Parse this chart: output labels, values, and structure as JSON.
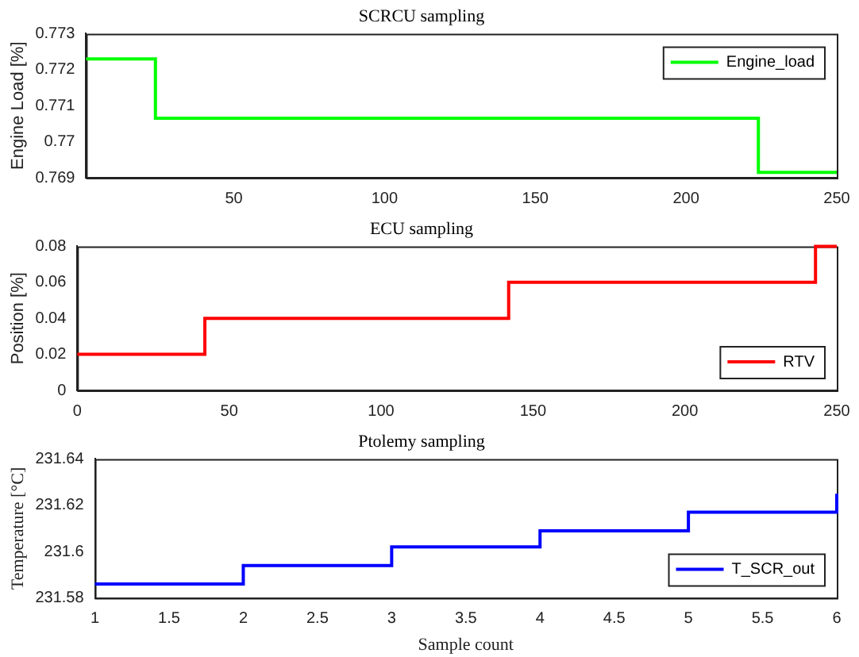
{
  "chart_data": [
    {
      "type": "step",
      "title": "SCRCU sampling",
      "ylabel": "Engine Load [%]",
      "xlim": [
        1,
        250
      ],
      "xticks": [
        50,
        100,
        150,
        200,
        250
      ],
      "ylim": [
        0.769,
        0.773
      ],
      "yticks": [
        0.769,
        0.77,
        0.771,
        0.772,
        0.773
      ],
      "legend": "top right",
      "grid": false,
      "series": [
        {
          "name": "Engine_load",
          "color": "#00ff00",
          "x": [
            1,
            24,
            224,
            250
          ],
          "values": [
            0.7723,
            0.77065,
            0.76915,
            0.76915
          ]
        }
      ]
    },
    {
      "type": "step",
      "title": "ECU sampling",
      "ylabel": "Position [%]",
      "xlim": [
        0,
        250
      ],
      "xticks": [
        0,
        50,
        100,
        150,
        200,
        250
      ],
      "ylim": [
        0,
        0.08
      ],
      "yticks": [
        0,
        0.02,
        0.04,
        0.06,
        0.08
      ],
      "legend": "bottom right",
      "grid": false,
      "series": [
        {
          "name": "RTV",
          "color": "#ff0000",
          "x": [
            0,
            42,
            142,
            243,
            250
          ],
          "values": [
            0.02,
            0.04,
            0.06,
            0.08,
            0.08
          ]
        }
      ]
    },
    {
      "type": "step",
      "title": "Ptolemy sampling",
      "xlabel": "Sample count",
      "ylabel": "Temperature [°C]",
      "xlim": [
        1,
        6
      ],
      "xticks": [
        1,
        1.5,
        2,
        2.5,
        3,
        3.5,
        4,
        4.5,
        5,
        5.5,
        6
      ],
      "ylim": [
        231.58,
        231.64
      ],
      "yticks": [
        231.58,
        231.6,
        231.62,
        231.64
      ],
      "legend": "bottom right",
      "grid": false,
      "series": [
        {
          "name": "T_SCR_out",
          "color": "#0000ff",
          "x": [
            1,
            2,
            3,
            4,
            5,
            6
          ],
          "values": [
            231.586,
            231.594,
            231.602,
            231.609,
            231.617,
            231.625
          ]
        }
      ]
    }
  ]
}
